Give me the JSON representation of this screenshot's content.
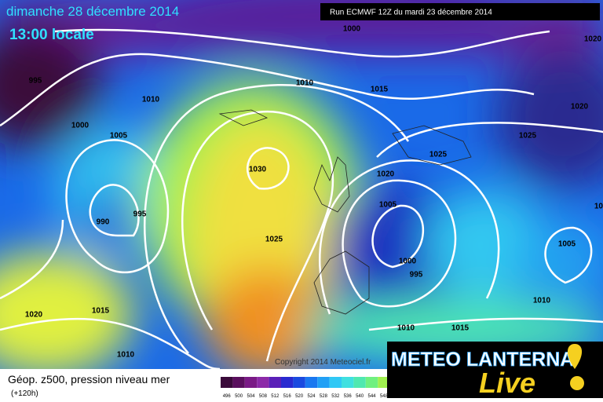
{
  "header": {
    "date": "dimanche 28 décembre 2014",
    "time": "13:00 locale",
    "run": "Run ECMWF 12Z du mardi 23 décembre 2014"
  },
  "isobar_labels": [
    "1000",
    "1020",
    "995",
    "1010",
    "1015",
    "1010",
    "1020",
    "1000",
    "1005",
    "1025",
    "1025",
    "1030",
    "1020",
    "1005",
    "995",
    "1020",
    "990",
    "1025",
    "1005",
    "1000",
    "995",
    "1010",
    "1015",
    "1020",
    "1010",
    "1015",
    "1010"
  ],
  "copyright": "Copyright 2014 Meteociel.fr",
  "legend": {
    "title": "Géop. z500, pression niveau mer",
    "lead": "(+120h)",
    "scale": [
      496,
      500,
      504,
      508,
      512,
      516,
      520,
      524,
      528,
      532,
      536,
      540,
      544,
      548
    ],
    "colors": [
      "#3a0a3a",
      "#5a0f5e",
      "#7a1a86",
      "#8c2aa8",
      "#5a1fb8",
      "#2a2ad0",
      "#1a4ae0",
      "#1a78f0",
      "#22a0f5",
      "#30c8f5",
      "#40e0e0",
      "#50e8b0",
      "#70f080",
      "#a0f050"
    ]
  },
  "logo": {
    "brand": "METEO LANTERNA",
    "tagline": "Live"
  }
}
